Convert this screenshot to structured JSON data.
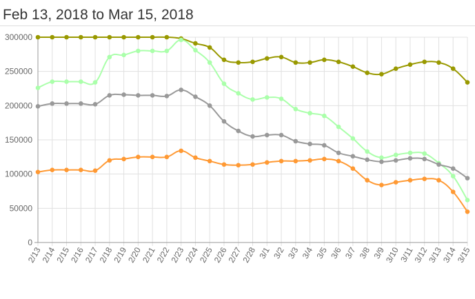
{
  "chart_data": {
    "type": "line",
    "title": "Feb 13, 2018 to Mar 15, 2018",
    "xlabel": "",
    "ylabel": "",
    "ylim": [
      0,
      300000
    ],
    "yticks": [
      "0",
      "50000",
      "100000",
      "150000",
      "200000",
      "250000",
      "300000"
    ],
    "grid": true,
    "categories": [
      "2/13",
      "2/14",
      "2/15",
      "2/16",
      "2/17",
      "2/18",
      "2/19",
      "2/20",
      "2/21",
      "2/22",
      "2/23",
      "2/24",
      "2/25",
      "2/26",
      "2/27",
      "2/28",
      "3/1",
      "3/2",
      "3/3",
      "3/4",
      "3/5",
      "3/6",
      "3/7",
      "3/8",
      "3/9",
      "3/10",
      "3/11",
      "3/12",
      "3/13",
      "3/14",
      "3/15"
    ],
    "series": [
      {
        "name": "olive",
        "color": "#999900",
        "values": [
          300000,
          300000,
          300000,
          300000,
          300000,
          300000,
          300000,
          300000,
          300000,
          300000,
          298000,
          291000,
          285000,
          267000,
          263000,
          264000,
          269000,
          271000,
          263000,
          263000,
          267000,
          264000,
          257000,
          248000,
          246000,
          254000,
          260000,
          264000,
          263000,
          254000,
          234000
        ]
      },
      {
        "name": "green",
        "color": "#aaffaa",
        "values": [
          226000,
          235000,
          235000,
          235000,
          234000,
          271000,
          274000,
          280000,
          280000,
          280000,
          296000,
          281000,
          263000,
          232000,
          218000,
          209000,
          212000,
          210000,
          195000,
          189000,
          185000,
          169000,
          152000,
          133000,
          124000,
          128000,
          131000,
          130000,
          116000,
          97000,
          62000
        ]
      },
      {
        "name": "gray",
        "color": "#999999",
        "values": [
          199000,
          203000,
          203000,
          203000,
          202000,
          215000,
          216000,
          215000,
          215000,
          214000,
          223000,
          213000,
          200000,
          177000,
          163000,
          155000,
          157000,
          157000,
          148000,
          144000,
          142000,
          131000,
          126000,
          121000,
          118000,
          120000,
          123000,
          122000,
          114000,
          108000,
          94000
        ]
      },
      {
        "name": "orange",
        "color": "#ff9933",
        "values": [
          103000,
          106000,
          106000,
          106000,
          105000,
          120000,
          122000,
          125000,
          125000,
          125000,
          134000,
          124000,
          119000,
          114000,
          113000,
          114000,
          117000,
          119000,
          119000,
          120000,
          122000,
          119000,
          108000,
          91000,
          84000,
          88000,
          91000,
          93000,
          91000,
          74000,
          45000
        ]
      }
    ]
  }
}
